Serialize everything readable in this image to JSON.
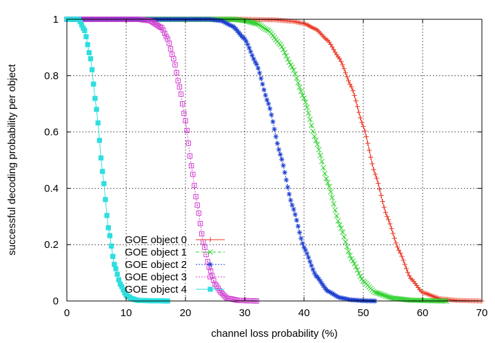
{
  "chart_data": {
    "type": "line",
    "title": "",
    "xlabel": "channel loss probability (%)",
    "ylabel": "successful decoding probability per object",
    "xlim": [
      0,
      70
    ],
    "ylim": [
      0,
      1
    ],
    "x_ticks": [
      "0",
      "10",
      "20",
      "30",
      "40",
      "50",
      "60",
      "70"
    ],
    "y_ticks": [
      "0",
      "0.2",
      "0.4",
      "0.6",
      "0.8",
      "1"
    ],
    "grid": true,
    "legend_position": "bottom-left",
    "series": [
      {
        "name": "GOE object 0",
        "color": "#e8321e",
        "marker": "plus",
        "line": "solid",
        "x": [
          0,
          30,
          35,
          38,
          40,
          42,
          44,
          46,
          48,
          50,
          52,
          54,
          56,
          58,
          60,
          63,
          66,
          70
        ],
        "y": [
          1,
          1,
          0.998,
          0.993,
          0.985,
          0.965,
          0.925,
          0.86,
          0.76,
          0.62,
          0.45,
          0.3,
          0.18,
          0.08,
          0.03,
          0.008,
          0.002,
          0
        ]
      },
      {
        "name": "GOE object 1",
        "color": "#2ed12e",
        "marker": "cross",
        "line": "dashed",
        "x": [
          0,
          28,
          30,
          32,
          34,
          36,
          38,
          40,
          42,
          44,
          46,
          48,
          50,
          52,
          55,
          58,
          61,
          64
        ],
        "y": [
          1,
          1,
          0.995,
          0.985,
          0.96,
          0.91,
          0.83,
          0.72,
          0.57,
          0.42,
          0.27,
          0.15,
          0.07,
          0.03,
          0.01,
          0.003,
          0.001,
          0
        ]
      },
      {
        "name": "GOE object 2",
        "color": "#1c3fd1",
        "marker": "star",
        "line": "dotted",
        "x": [
          0,
          24,
          26,
          28,
          30,
          32,
          34,
          36,
          38,
          40,
          42,
          44,
          46,
          48,
          50,
          52
        ],
        "y": [
          1,
          1,
          0.995,
          0.975,
          0.93,
          0.84,
          0.7,
          0.52,
          0.34,
          0.19,
          0.09,
          0.035,
          0.012,
          0.004,
          0.001,
          0
        ]
      },
      {
        "name": "GOE object 3",
        "color": "#d13ed1",
        "marker": "square-open",
        "line": "dotted",
        "x": [
          0,
          12,
          14,
          16,
          17,
          18,
          19,
          20,
          21,
          22,
          23,
          24,
          25,
          26,
          27,
          29,
          32
        ],
        "y": [
          1,
          1,
          0.995,
          0.97,
          0.93,
          0.86,
          0.76,
          0.64,
          0.48,
          0.34,
          0.21,
          0.12,
          0.06,
          0.03,
          0.01,
          0.002,
          0
        ]
      },
      {
        "name": "GOE object 4",
        "color": "#2edede",
        "marker": "square-filled",
        "line": "solid",
        "x": [
          0,
          2,
          3,
          4,
          5,
          6,
          7,
          8,
          9,
          10,
          11,
          12,
          14,
          17
        ],
        "y": [
          1,
          1,
          0.96,
          0.86,
          0.68,
          0.46,
          0.26,
          0.13,
          0.06,
          0.02,
          0.008,
          0.002,
          0.001,
          0
        ]
      }
    ]
  }
}
